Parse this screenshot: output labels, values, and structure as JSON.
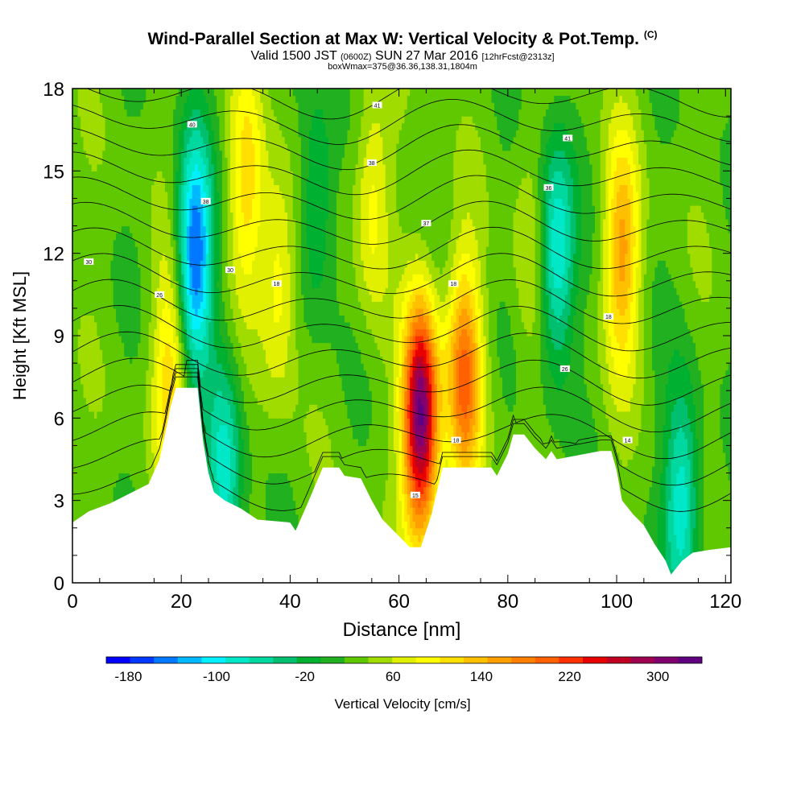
{
  "header": {
    "title": "Wind-Parallel Section at Max W: Vertical Velocity & Pot.Temp.",
    "copyright": "(C)",
    "valid_prefix": "Valid 1500 JST",
    "utc": "(0600Z)",
    "valid_date": "SUN 27 Mar 2016",
    "forecast": "[12hrFcst@2313z]",
    "boxwmax": "boxWmax=375@36.36,138.31,1804m"
  },
  "chart_data": {
    "type": "heatmap",
    "xlabel": "Distance [nm]",
    "ylabel": "Height [Kft MSL]",
    "xlim": [
      0,
      121
    ],
    "ylim": [
      0,
      18
    ],
    "x_ticks": [
      0,
      20,
      40,
      60,
      80,
      100,
      120
    ],
    "y_ticks": [
      0,
      3,
      6,
      9,
      12,
      15,
      18
    ],
    "colorbar": {
      "label": "Vertical Velocity [cm/s]",
      "tick_labels": [
        "-180",
        "-100",
        "-20",
        "60",
        "140",
        "220",
        "300"
      ],
      "tick_values": [
        -180,
        -100,
        -20,
        60,
        140,
        220,
        300
      ],
      "range": [
        -200,
        340
      ],
      "colors": [
        "#0000ff",
        "#0038ff",
        "#0078ff",
        "#00b8ff",
        "#00f0ff",
        "#00e8c8",
        "#00d8a0",
        "#00c070",
        "#00b030",
        "#20b020",
        "#60c800",
        "#a0dc00",
        "#e0f000",
        "#ffff00",
        "#ffe000",
        "#ffc000",
        "#ffa000",
        "#ff8000",
        "#ff6000",
        "#ff3000",
        "#e80000",
        "#c00020",
        "#a00050",
        "#800070",
        "#600080"
      ]
    },
    "updraft_cores_cm_s": [
      {
        "x": 64,
        "y": 6.0,
        "w": 330
      },
      {
        "x": 72,
        "y": 7.5,
        "w": 190
      },
      {
        "x": 101,
        "y": 12.0,
        "w": 150
      },
      {
        "x": 38,
        "y": 11.0,
        "w": 100
      },
      {
        "x": 32,
        "y": 14.5,
        "w": 110
      },
      {
        "x": 18,
        "y": 7.5,
        "w": 120
      },
      {
        "x": 55,
        "y": 14.0,
        "w": 90
      },
      {
        "x": 84,
        "y": 12.0,
        "w": 60
      }
    ],
    "downdraft_cores_cm_s": [
      {
        "x": 22.5,
        "y": 12.0,
        "w": -160
      },
      {
        "x": 89,
        "y": 12.0,
        "w": -100
      },
      {
        "x": 28,
        "y": 4.0,
        "w": -80
      },
      {
        "x": 112,
        "y": 3.0,
        "w": -90
      },
      {
        "x": 45,
        "y": 14.0,
        "w": -40
      }
    ],
    "terrain_top_kft": [
      [
        0,
        2.2
      ],
      [
        3,
        2.6
      ],
      [
        7,
        2.9
      ],
      [
        11,
        3.3
      ],
      [
        14,
        3.6
      ],
      [
        16,
        4.5
      ],
      [
        17,
        5.4
      ],
      [
        18,
        6.4
      ],
      [
        19,
        7.1
      ],
      [
        23,
        7.1
      ],
      [
        24,
        5.2
      ],
      [
        25,
        4.0
      ],
      [
        26,
        3.3
      ],
      [
        28,
        3.0
      ],
      [
        31,
        2.7
      ],
      [
        34,
        2.3
      ],
      [
        40,
        2.2
      ],
      [
        41,
        1.9
      ],
      [
        43,
        2.8
      ],
      [
        46,
        4.2
      ],
      [
        49,
        4.2
      ],
      [
        50,
        3.9
      ],
      [
        53,
        3.8
      ],
      [
        55,
        3.0
      ],
      [
        57,
        2.3
      ],
      [
        60,
        1.7
      ],
      [
        62,
        1.3
      ],
      [
        64,
        1.3
      ],
      [
        66,
        2.5
      ],
      [
        68,
        4.2
      ],
      [
        77,
        4.2
      ],
      [
        78,
        3.9
      ],
      [
        80,
        4.7
      ],
      [
        81,
        5.4
      ],
      [
        83,
        5.4
      ],
      [
        85,
        4.9
      ],
      [
        87,
        4.5
      ],
      [
        88,
        4.8
      ],
      [
        89,
        4.5
      ],
      [
        97,
        4.8
      ],
      [
        99,
        4.8
      ],
      [
        100,
        4.1
      ],
      [
        101,
        3.0
      ],
      [
        103,
        2.5
      ],
      [
        105,
        2.1
      ],
      [
        107,
        1.4
      ],
      [
        109,
        0.8
      ],
      [
        110,
        0.3
      ],
      [
        112,
        0.8
      ],
      [
        114,
        1.1
      ],
      [
        117,
        1.2
      ],
      [
        121,
        1.3
      ]
    ],
    "theta_contour_labels": [
      {
        "text": "41",
        "x": 56,
        "y": 17.4
      },
      {
        "text": "40",
        "x": 22,
        "y": 16.7
      },
      {
        "text": "41",
        "x": 91,
        "y": 16.2
      },
      {
        "text": "38",
        "x": 55,
        "y": 15.3
      },
      {
        "text": "36",
        "x": 87.5,
        "y": 14.4
      },
      {
        "text": "38",
        "x": 24.5,
        "y": 13.9
      },
      {
        "text": "37",
        "x": 65,
        "y": 13.1
      },
      {
        "text": "30",
        "x": 3,
        "y": 11.7
      },
      {
        "text": "30",
        "x": 29,
        "y": 11.4
      },
      {
        "text": "18",
        "x": 37.5,
        "y": 10.9
      },
      {
        "text": "18",
        "x": 70,
        "y": 10.9
      },
      {
        "text": "26",
        "x": 16,
        "y": 10.5
      },
      {
        "text": "18",
        "x": 98.5,
        "y": 9.7
      },
      {
        "text": "26",
        "x": 90.5,
        "y": 7.8
      },
      {
        "text": "18",
        "x": 70.5,
        "y": 5.2
      },
      {
        "text": "14",
        "x": 102,
        "y": 5.2
      },
      {
        "text": "15",
        "x": 63,
        "y": 3.2
      }
    ]
  }
}
